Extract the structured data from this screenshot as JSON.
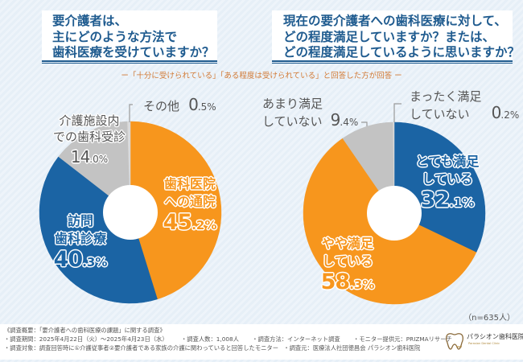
{
  "left_question": {
    "lines": [
      "要介護者は、",
      "主にどのような方法で",
      "歯科医療を受けていますか？"
    ]
  },
  "right_question": {
    "lines": [
      "現在の要介護者への歯科医療に対して、",
      "どの程度満足していますか？または、",
      "どの程度満足しているように思いますか？"
    ]
  },
  "respondent_note": "ー「十分に受けられている」「ある程度は受けられている」と回答した方が回答 ー",
  "sample_size": "（n=635人）",
  "chart_data": [
    {
      "type": "pie",
      "donut": true,
      "title": "要介護者は、主にどのような方法で歯科医療を受けていますか？",
      "unit": "%",
      "start": "12 o'clock, clockwise",
      "slices": [
        {
          "label": "歯科医院への通院",
          "label_lines": [
            "歯科医院",
            "への通院"
          ],
          "value": 45.2,
          "display": "45.2%",
          "color": "#f7961d"
        },
        {
          "label": "訪問歯科診療",
          "label_lines": [
            "訪問",
            "歯科診療"
          ],
          "value": 40.3,
          "display": "40.3%",
          "color": "#1b64a4"
        },
        {
          "label": "介護施設内での歯科受診",
          "label_lines": [
            "介護施設内",
            "での歯科受診"
          ],
          "value": 14.0,
          "display": "14.0%",
          "color": "#c3c3c3"
        },
        {
          "label": "その他",
          "label_lines": [
            "その他"
          ],
          "value": 0.5,
          "display": "0.5%",
          "color": "#dadada"
        }
      ]
    },
    {
      "type": "pie",
      "donut": true,
      "title": "現在の要介護者への歯科医療に対して、どの程度満足していますか？または、どの程度満足しているように思いますか？",
      "unit": "%",
      "start": "12 o'clock, clockwise",
      "slices": [
        {
          "label": "とても満足している",
          "label_lines": [
            "とても満足",
            "している"
          ],
          "value": 32.1,
          "display": "32.1%",
          "color": "#1b64a4"
        },
        {
          "label": "やや満足している",
          "label_lines": [
            "やや満足",
            "している"
          ],
          "value": 58.3,
          "display": "58.3%",
          "color": "#f7961d"
        },
        {
          "label": "あまり満足していない",
          "label_lines": [
            "あまり満足",
            "していない"
          ],
          "value": 9.4,
          "display": "9.4%",
          "color": "#c3c3c3"
        },
        {
          "label": "まったく満足していない",
          "label_lines": [
            "まったく満足",
            "していない"
          ],
          "value": 0.2,
          "display": "0.2%",
          "color": "#dadada"
        }
      ]
    }
  ],
  "footer": {
    "overview": "《調査概要：「要介護者への歯科医療の課題」に関する調査》",
    "details": [
      "・調査期間：2025年4月22日（火）〜2025年4月23日（水）",
      "・調査人数：1,008人",
      "・調査方法：インターネット調査",
      "・モニター提供元：PRIZMAリサーチ"
    ],
    "target": [
      "・調査対象：調査回答時に①介護従事者②要介護者である家族の介護に関わっていると回答したモニター",
      "・調査元：医療法人社団徳昌会 パラシオン歯科医院"
    ]
  },
  "logo": {
    "name": "パラシオン歯科医院",
    "subtitle": "Parasion Dental Clinic"
  }
}
